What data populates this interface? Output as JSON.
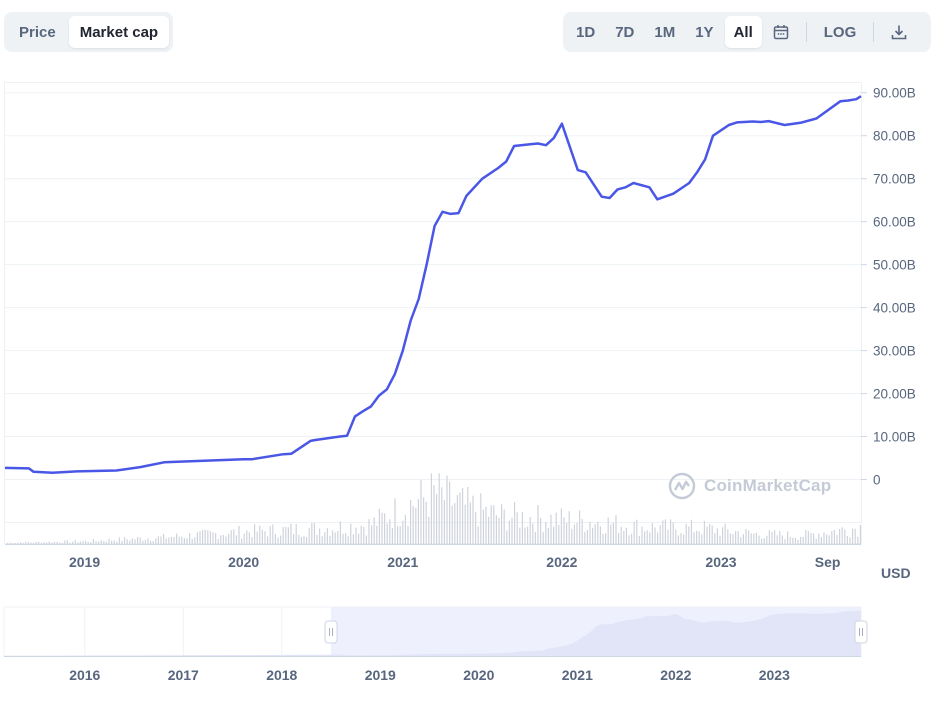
{
  "tabs": {
    "metric": [
      {
        "label": "Price",
        "active": false
      },
      {
        "label": "Market cap",
        "active": true
      }
    ],
    "range": [
      {
        "label": "1D",
        "active": false
      },
      {
        "label": "7D",
        "active": false
      },
      {
        "label": "1M",
        "active": false
      },
      {
        "label": "1Y",
        "active": false
      },
      {
        "label": "All",
        "active": true
      }
    ],
    "log_label": "LOG",
    "calendar_icon": "calendar-icon",
    "download_icon": "download-icon"
  },
  "watermark": "CoinMarketCap",
  "currency_label": "USD",
  "colors": {
    "line": "#4a57e6",
    "volume": "#cfd3dc",
    "grid": "#eff2f5",
    "nav_fill": "#e2e5f7",
    "nav_selection": "#eef0fd"
  },
  "chart_data": {
    "type": "line",
    "title": "",
    "series_name": "Market cap",
    "y_unit": "USD",
    "y_ticks": [
      "90.00B",
      "80.00B",
      "70.00B",
      "60.00B",
      "50.00B",
      "40.00B",
      "30.00B",
      "20.00B",
      "10.00B",
      "0"
    ],
    "ylim": [
      -15,
      92.5
    ],
    "x_ticks": [
      {
        "label": "2019",
        "t": 2019.0
      },
      {
        "label": "2020",
        "t": 2020.0
      },
      {
        "label": "2021",
        "t": 2021.0
      },
      {
        "label": "2022",
        "t": 2022.0
      },
      {
        "label": "2023",
        "t": 2023.0
      },
      {
        "label": "Sep",
        "t": 2023.67
      }
    ],
    "xlim": [
      2018.5,
      2023.88
    ],
    "x": [
      2018.5,
      2018.65,
      2018.68,
      2018.8,
      2018.95,
      2019.2,
      2019.35,
      2019.5,
      2020.0,
      2020.05,
      2020.25,
      2020.3,
      2020.42,
      2020.45,
      2020.6,
      2020.65,
      2020.7,
      2020.75,
      2020.8,
      2020.85,
      2020.9,
      2020.95,
      2021.0,
      2021.05,
      2021.1,
      2021.15,
      2021.2,
      2021.25,
      2021.3,
      2021.35,
      2021.4,
      2021.5,
      2021.6,
      2021.65,
      2021.7,
      2021.8,
      2021.85,
      2021.9,
      2021.95,
      2022.0,
      2022.1,
      2022.15,
      2022.25,
      2022.3,
      2022.35,
      2022.4,
      2022.45,
      2022.55,
      2022.6,
      2022.7,
      2022.8,
      2022.85,
      2022.9,
      2022.95,
      2023.05,
      2023.1,
      2023.2,
      2023.25,
      2023.3,
      2023.4,
      2023.5,
      2023.6,
      2023.75,
      2023.8,
      2023.85,
      2023.88
    ],
    "y": [
      2.7,
      2.6,
      1.8,
      1.6,
      1.9,
      2.1,
      2.9,
      4.0,
      4.7,
      4.7,
      5.9,
      6.0,
      9.0,
      9.2,
      10.0,
      10.2,
      14.7,
      15.9,
      17.0,
      19.5,
      21.0,
      24.5,
      30.0,
      37.0,
      42.0,
      50.0,
      59.0,
      62.3,
      61.8,
      62.0,
      66.0,
      70.0,
      72.5,
      74.0,
      77.6,
      78.0,
      78.2,
      77.8,
      79.5,
      82.8,
      72.0,
      71.5,
      65.8,
      65.5,
      67.5,
      68.0,
      69.0,
      68.0,
      65.2,
      66.5,
      69.0,
      71.5,
      74.5,
      80.0,
      82.5,
      83.1,
      83.3,
      83.2,
      83.4,
      82.5,
      83.0,
      84.0,
      88.0,
      88.2,
      88.5,
      89.2
    ],
    "volume": {
      "note": "relative trading volume shown as grey bars at chart bottom",
      "x": [
        2018.5,
        2019.0,
        2019.5,
        2020.0,
        2020.5,
        2020.8,
        2021.0,
        2021.2,
        2021.35,
        2021.6,
        2021.9,
        2022.2,
        2022.5,
        2022.9,
        2023.2,
        2023.5,
        2023.88
      ],
      "values": [
        0.02,
        0.05,
        0.12,
        0.22,
        0.28,
        0.35,
        0.65,
        0.9,
        0.7,
        0.5,
        0.45,
        0.4,
        0.3,
        0.28,
        0.18,
        0.15,
        0.3
      ]
    },
    "navigator": {
      "x_ticks": [
        "2016",
        "2017",
        "2018",
        "2019",
        "2020",
        "2021",
        "2022",
        "2023"
      ],
      "range": [
        2015.18,
        2023.88
      ],
      "selection": [
        2018.5,
        2023.88
      ]
    },
    "grid": true,
    "legend": "none"
  }
}
